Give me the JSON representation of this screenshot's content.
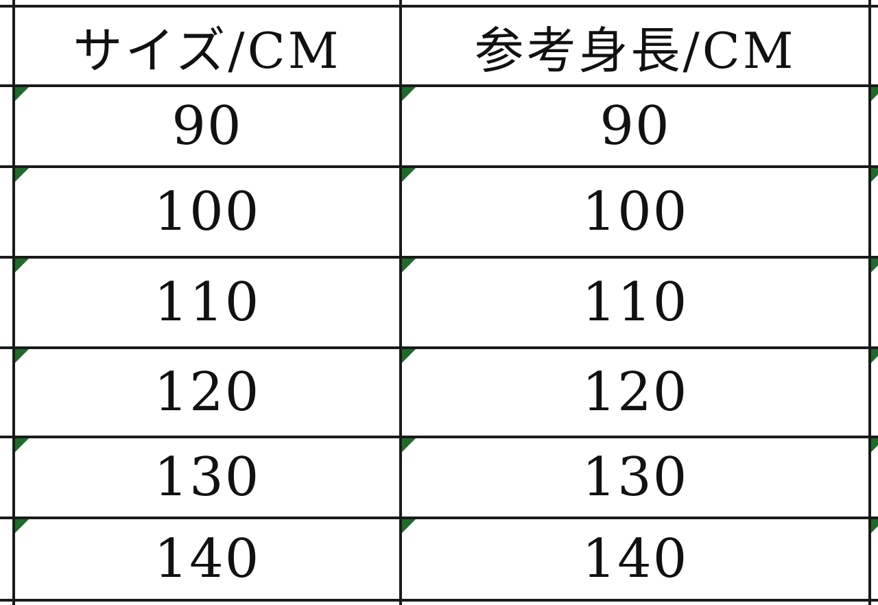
{
  "table": {
    "headers": [
      "サイズ/CM",
      "参考身長/CM"
    ],
    "rows": [
      [
        "90",
        "90"
      ],
      [
        "100",
        "100"
      ],
      [
        "110",
        "110"
      ],
      [
        "120",
        "120"
      ],
      [
        "130",
        "130"
      ],
      [
        "140",
        "140"
      ]
    ]
  },
  "colors": {
    "grid": "#1a1a1a",
    "error_indicator": "#1f6b2c"
  }
}
